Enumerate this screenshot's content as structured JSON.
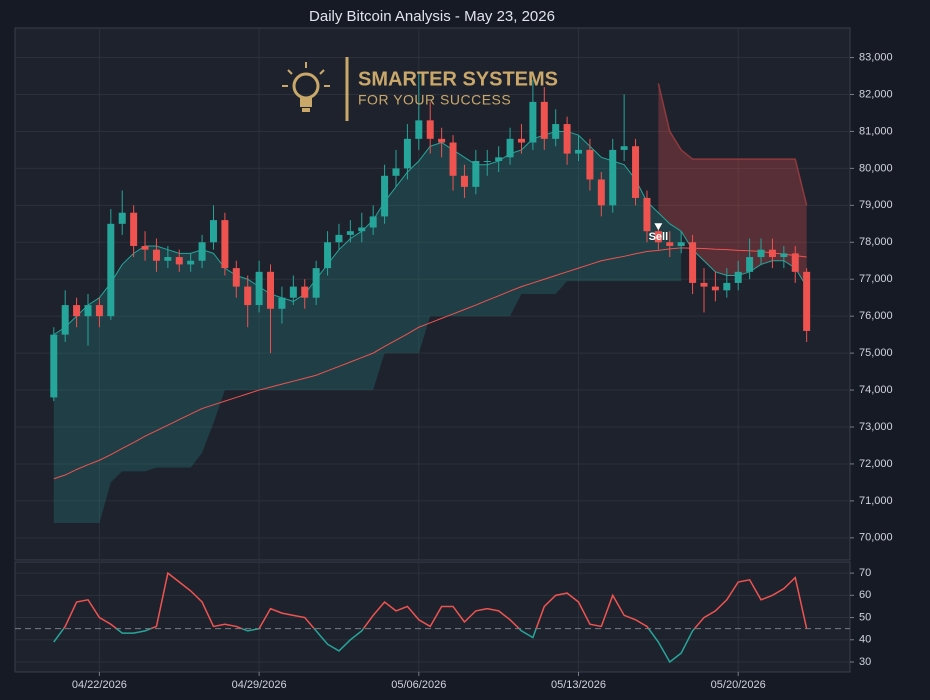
{
  "logo": {
    "line1": "SMARTER SYSTEMS",
    "line2": "FOR YOUR SUCCESS"
  },
  "chart_data": [
    {
      "type": "candlestick",
      "title": "Daily Bitcoin Analysis - May 23, 2026",
      "categories": [
        null,
        null,
        null,
        null,
        null,
        null,
        null,
        null,
        null,
        null,
        null,
        null,
        null,
        null,
        null,
        null,
        null,
        null,
        null,
        null,
        null,
        null,
        null,
        null,
        null,
        null,
        null,
        null,
        null,
        null,
        null,
        null,
        null,
        null,
        null,
        null,
        null,
        null,
        null,
        null,
        null,
        null,
        null,
        null,
        null,
        null,
        null,
        null,
        null,
        null,
        null,
        null,
        null,
        null,
        null,
        null,
        null,
        null,
        null,
        null,
        null,
        null,
        null,
        null,
        null,
        null,
        null
      ],
      "open": [
        73800,
        75500,
        76300,
        76000,
        76300,
        76000,
        78500,
        78800,
        77900,
        77800,
        77500,
        77600,
        77400,
        77500,
        78000,
        78600,
        77300,
        76800,
        76300,
        77200,
        76200,
        76500,
        76800,
        76500,
        77300,
        78000,
        78200,
        78300,
        78400,
        78700,
        79800,
        80000,
        80800,
        81300,
        80800,
        80700,
        79800,
        79500,
        80200,
        80200,
        80300,
        80800,
        80700,
        81800,
        80800,
        81200,
        80400,
        80500,
        79700,
        79000,
        80500,
        80600,
        79200,
        78300,
        78000,
        77900,
        78000,
        76900,
        76800,
        76700,
        76900,
        77200,
        77600,
        77800,
        77600,
        77700,
        77200
      ],
      "high": [
        75700,
        76700,
        76500,
        76600,
        76500,
        78900,
        79400,
        79000,
        78300,
        78100,
        77900,
        77800,
        77700,
        78200,
        79000,
        78800,
        77500,
        77100,
        77500,
        77400,
        76800,
        77100,
        77000,
        77500,
        78300,
        78500,
        78600,
        78800,
        79000,
        80100,
        80500,
        81200,
        82600,
        81800,
        81100,
        80900,
        80100,
        80500,
        80500,
        80600,
        81100,
        81200,
        82400,
        82200,
        81600,
        81400,
        80900,
        80800,
        79900,
        80800,
        82000,
        80800,
        79400,
        78400,
        78300,
        78300,
        78200,
        77300,
        77200,
        77300,
        77500,
        78100,
        78100,
        78100,
        77900,
        77900,
        77300
      ],
      "low": [
        73700,
        75300,
        75700,
        75200,
        75700,
        75900,
        78200,
        77600,
        77500,
        77200,
        77300,
        77200,
        77200,
        77300,
        77800,
        77100,
        76500,
        75700,
        76100,
        75000,
        75800,
        76300,
        76200,
        76300,
        77100,
        77800,
        78000,
        78000,
        78200,
        78500,
        79500,
        79700,
        80500,
        80400,
        80300,
        79400,
        79200,
        79300,
        79800,
        79900,
        80100,
        80400,
        80500,
        80500,
        80600,
        80100,
        80200,
        79400,
        78700,
        78800,
        80200,
        79000,
        78000,
        77800,
        77600,
        77700,
        76600,
        76100,
        76400,
        76500,
        76700,
        77000,
        77400,
        77300,
        77300,
        76900,
        75300
      ],
      "close": [
        75500,
        76300,
        76000,
        76300,
        76000,
        78500,
        78800,
        77900,
        77800,
        77500,
        77600,
        77400,
        77500,
        78000,
        78600,
        77300,
        76800,
        76300,
        77200,
        76200,
        76500,
        76800,
        76500,
        77300,
        78000,
        78200,
        78300,
        78400,
        78700,
        79800,
        80000,
        80800,
        81300,
        80800,
        80700,
        79800,
        79500,
        80200,
        80200,
        80300,
        80800,
        80700,
        81800,
        80800,
        81200,
        80400,
        80500,
        79700,
        79000,
        80500,
        80600,
        79200,
        78300,
        78000,
        77900,
        78000,
        76900,
        76800,
        76700,
        76900,
        77200,
        77600,
        77800,
        77600,
        77700,
        77200,
        75600
      ],
      "fast_ma": [
        75500,
        75700,
        76000,
        76300,
        76500,
        76900,
        77400,
        77700,
        77900,
        77900,
        77800,
        77700,
        77700,
        77800,
        77700,
        77300,
        77100,
        77000,
        76800,
        76600,
        76500,
        76400,
        76600,
        77000,
        77400,
        77800,
        78100,
        78300,
        78600,
        79100,
        79500,
        79900,
        80200,
        80600,
        80700,
        80500,
        80300,
        80100,
        80100,
        80200,
        80400,
        80500,
        80800,
        80900,
        81000,
        81000,
        80900,
        80600,
        80300,
        80200,
        80100,
        79700,
        79100,
        78800,
        78500,
        78300,
        77800,
        77500,
        77200,
        77100,
        77100,
        77200,
        77400,
        77500,
        77500,
        77300,
        76800
      ],
      "slow_ma": [
        71600,
        71700,
        71850,
        71980,
        72100,
        72250,
        72420,
        72580,
        72750,
        72900,
        73050,
        73200,
        73350,
        73500,
        73600,
        73700,
        73800,
        73900,
        74000,
        74080,
        74160,
        74240,
        74320,
        74400,
        74520,
        74640,
        74760,
        74880,
        75000,
        75180,
        75350,
        75520,
        75700,
        75820,
        75940,
        76060,
        76180,
        76300,
        76430,
        76550,
        76680,
        76800,
        76900,
        77000,
        77100,
        77200,
        77300,
        77400,
        77500,
        77560,
        77620,
        77690,
        77750,
        77780,
        77820,
        77850,
        77840,
        77830,
        77810,
        77800,
        77780,
        77770,
        77750,
        77710,
        77680,
        77640,
        77600
      ],
      "long_stop": [
        70400,
        70400,
        70400,
        70400,
        70400,
        71500,
        71800,
        71800,
        71800,
        71900,
        71900,
        71900,
        71900,
        72300,
        73100,
        74000,
        74000,
        74000,
        74000,
        74000,
        74000,
        74000,
        74000,
        74000,
        74000,
        74000,
        74000,
        74000,
        74000,
        75000,
        75000,
        75000,
        75000,
        76000,
        76000,
        76000,
        76000,
        76000,
        76000,
        76000,
        76000,
        76600,
        76600,
        76600,
        76600,
        76950,
        76950,
        76950,
        76950,
        76950,
        76950,
        76950,
        76950,
        76950,
        76950,
        76950,
        null,
        null,
        null,
        null,
        null,
        null,
        null,
        null,
        null,
        null,
        null
      ],
      "short_stop": [
        null,
        null,
        null,
        null,
        null,
        null,
        null,
        null,
        null,
        null,
        null,
        null,
        null,
        null,
        null,
        null,
        null,
        null,
        null,
        null,
        null,
        null,
        null,
        null,
        null,
        null,
        null,
        null,
        null,
        null,
        null,
        null,
        null,
        null,
        null,
        null,
        null,
        null,
        null,
        null,
        null,
        null,
        null,
        null,
        null,
        null,
        null,
        null,
        null,
        null,
        null,
        null,
        null,
        82300,
        81000,
        80500,
        80250,
        80250,
        80250,
        80250,
        80250,
        80250,
        80250,
        80250,
        80250,
        80250,
        79000
      ],
      "up_color": "#26a69a",
      "down_color": "#ef5350",
      "fast_color": "#26a69a",
      "slow_color": "#ef5350",
      "long_fill": "rgba(38,166,154,0.22)",
      "short_fill": "rgba(239,83,80,0.28)",
      "short_stop_color": "#8e3a3d",
      "xlim": [
        -3.4,
        69.8
      ],
      "xticks": [
        {
          "value": 4,
          "label": "04/22/2026"
        },
        {
          "value": 18,
          "label": "04/29/2026"
        },
        {
          "value": 32,
          "label": "05/06/2026"
        },
        {
          "value": 46,
          "label": "05/13/2026"
        },
        {
          "value": 60,
          "label": "05/20/2026"
        }
      ],
      "ylim": [
        69400,
        83800
      ],
      "yticks": [
        {
          "value": 70000,
          "label": "70,000"
        },
        {
          "value": 71000,
          "label": "71,000"
        },
        {
          "value": 72000,
          "label": "72,000"
        },
        {
          "value": 73000,
          "label": "73,000"
        },
        {
          "value": 74000,
          "label": "74,000"
        },
        {
          "value": 75000,
          "label": "75,000"
        },
        {
          "value": 76000,
          "label": "76,000"
        },
        {
          "value": 77000,
          "label": "77,000"
        },
        {
          "value": 78000,
          "label": "78,000"
        },
        {
          "value": 79000,
          "label": "79,000"
        },
        {
          "value": 80000,
          "label": "80,000"
        },
        {
          "value": 81000,
          "label": "81,000"
        },
        {
          "value": 82000,
          "label": "82,000"
        },
        {
          "value": 83000,
          "label": "83,000"
        }
      ],
      "annotations": [
        {
          "text": "Sell",
          "index": 53,
          "value": 78300
        }
      ],
      "grid": true
    },
    {
      "type": "line",
      "values": [
        39,
        46,
        57,
        58,
        50,
        47,
        43,
        43,
        44,
        46,
        70,
        66,
        62,
        57,
        46,
        47,
        46,
        44,
        45,
        54,
        52,
        51,
        50,
        44,
        38,
        35,
        40,
        44,
        51,
        57,
        53,
        55,
        49,
        46,
        55,
        55,
        48,
        53,
        54,
        53,
        49,
        44,
        41,
        55,
        60,
        61,
        57,
        47,
        46,
        60,
        51,
        49,
        46,
        39,
        30,
        34,
        44,
        50,
        53,
        58,
        66,
        67,
        58,
        60,
        63,
        68,
        45
      ],
      "midline": 45,
      "above_color": "#ef5350",
      "below_color": "#26a69a",
      "ylim": [
        25.5,
        75
      ],
      "yticks": [
        30,
        40,
        50,
        60,
        70
      ],
      "grid": true
    }
  ]
}
